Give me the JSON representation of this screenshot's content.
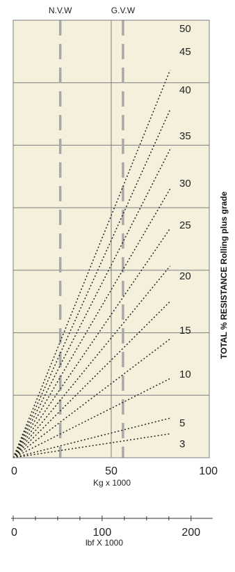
{
  "chart_data": {
    "type": "line",
    "background": "#f4f0dc",
    "grid": true,
    "x_axis": {
      "label": "Kg x 1000",
      "range": [
        0,
        100
      ],
      "ticks": [
        0,
        50,
        100
      ],
      "tick_labels": [
        "0",
        "50",
        "100"
      ]
    },
    "secondary_x_axis": {
      "label": "lbf X 1000",
      "range": [
        0,
        220.5
      ],
      "ticks": [
        0,
        100,
        200
      ],
      "tick_labels": [
        "0",
        "100",
        "200"
      ]
    },
    "y_axis_title": "TOTAL % RESISTANCE Rolling plus grade",
    "markers": [
      {
        "label": "N.V.W",
        "x": 24
      },
      {
        "label": "G.V.W",
        "x": 56
      }
    ],
    "series": [
      {
        "name": "3",
        "x": [
          0,
          80
        ],
        "y": [
          0,
          11.5
        ]
      },
      {
        "name": "5",
        "x": [
          0,
          80
        ],
        "y": [
          0,
          19
        ]
      },
      {
        "name": "10",
        "x": [
          0,
          80
        ],
        "y": [
          0,
          38
        ]
      },
      {
        "name": "15",
        "x": [
          0,
          80
        ],
        "y": [
          0,
          57
        ]
      },
      {
        "name": "20",
        "x": [
          0,
          80
        ],
        "y": [
          0,
          75
        ]
      },
      {
        "name": "25",
        "x": [
          0,
          80
        ],
        "y": [
          0,
          92
        ]
      },
      {
        "name": "30",
        "x": [
          0,
          80
        ],
        "y": [
          0,
          110
        ]
      },
      {
        "name": "35",
        "x": [
          0,
          80
        ],
        "y": [
          0,
          129
        ]
      },
      {
        "name": "40",
        "x": [
          0,
          80
        ],
        "y": [
          0,
          148
        ]
      },
      {
        "name": "45",
        "x": [
          0,
          80
        ],
        "y": [
          0,
          167
        ]
      },
      {
        "name": "50",
        "x": [
          0,
          80
        ],
        "y": [
          0,
          186
        ]
      }
    ]
  },
  "colors": {
    "plot_bg": "#f4f0dc",
    "grid": "#7c7c7c",
    "marker": "#a8a8a8",
    "line": "#222222"
  }
}
